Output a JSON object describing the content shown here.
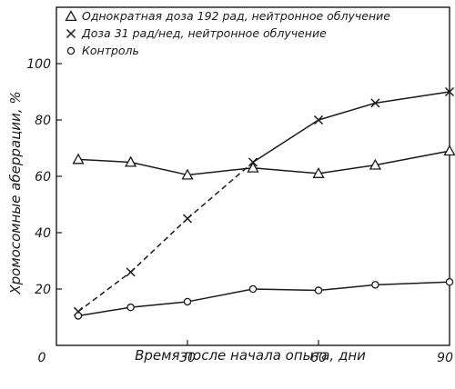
{
  "chart_data": {
    "type": "line",
    "title": "",
    "xlabel": "Время после начала опыта, дни",
    "ylabel": "Хромосомные аберрации, %",
    "xlim": [
      0,
      90
    ],
    "ylim": [
      0,
      120
    ],
    "x_ticks": [
      "0",
      "30",
      "60",
      "90"
    ],
    "y_ticks": [
      "20",
      "40",
      "60",
      "80",
      "100"
    ],
    "x_tick_values": [
      0,
      30,
      60,
      90
    ],
    "y_tick_values": [
      20,
      40,
      60,
      80,
      100
    ],
    "grid": false,
    "legend_position": "top-left",
    "series": [
      {
        "name": "Однократная доза 192 рад, нейтронное облучение",
        "marker": "triangle",
        "x": [
          5,
          17,
          30,
          45,
          60,
          73,
          90
        ],
        "y": [
          66,
          65,
          60.5,
          63,
          61,
          64,
          69
        ],
        "dashed_segments_before_index": 0
      },
      {
        "name": "Доза 31 рад/нед, нейтронное облучение",
        "marker": "cross",
        "x": [
          5,
          17,
          30,
          45,
          60,
          73,
          90
        ],
        "y": [
          12,
          26,
          45,
          65,
          80,
          86,
          90
        ],
        "dashed_segments_before_index": 4
      },
      {
        "name": "Контроль",
        "marker": "circle",
        "x": [
          5,
          17,
          30,
          45,
          60,
          73,
          90
        ],
        "y": [
          10.5,
          13.5,
          15.5,
          20,
          19.5,
          21.5,
          22.5
        ],
        "dashed_segments_before_index": 0
      }
    ]
  }
}
